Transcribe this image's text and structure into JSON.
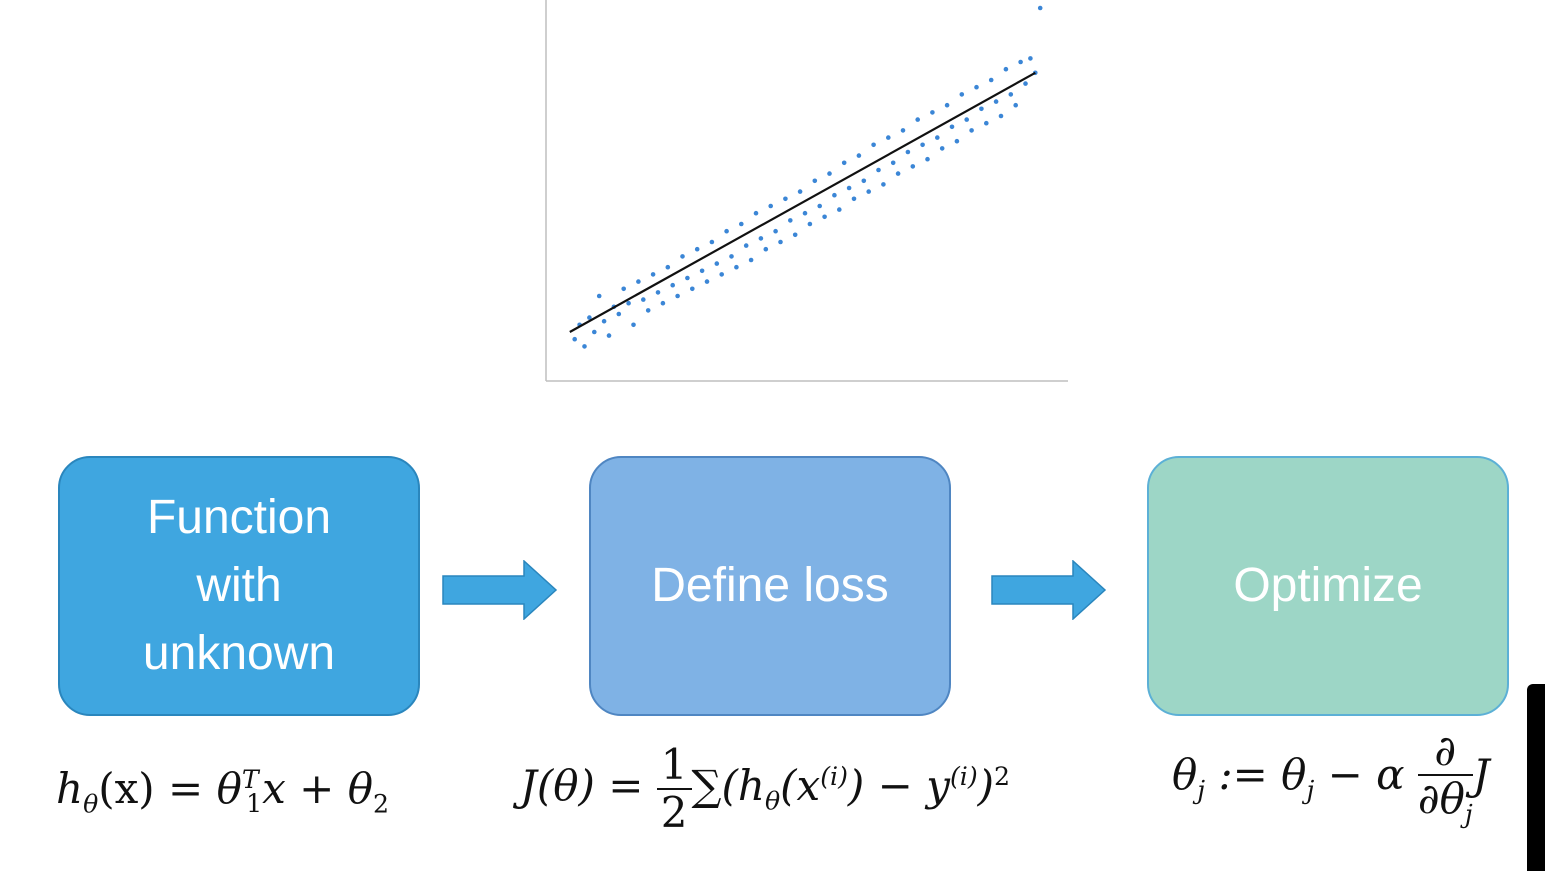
{
  "chart_data": {
    "type": "scatter",
    "title": "",
    "xlabel": "",
    "ylabel": "",
    "xlim": [
      0,
      100
    ],
    "ylim": [
      0,
      100
    ],
    "tick_labels_legible": false,
    "fit_line": {
      "x": [
        2,
        97
      ],
      "y": [
        10,
        82
      ],
      "color": "#111111"
    },
    "point_color": "#3b86d6",
    "points": [
      {
        "x": 3,
        "y": 8
      },
      {
        "x": 4,
        "y": 12
      },
      {
        "x": 5,
        "y": 6
      },
      {
        "x": 6,
        "y": 14
      },
      {
        "x": 7,
        "y": 10
      },
      {
        "x": 8,
        "y": 20
      },
      {
        "x": 9,
        "y": 13
      },
      {
        "x": 10,
        "y": 9
      },
      {
        "x": 11,
        "y": 17
      },
      {
        "x": 12,
        "y": 15
      },
      {
        "x": 13,
        "y": 22
      },
      {
        "x": 14,
        "y": 18
      },
      {
        "x": 15,
        "y": 12
      },
      {
        "x": 16,
        "y": 24
      },
      {
        "x": 17,
        "y": 19
      },
      {
        "x": 18,
        "y": 16
      },
      {
        "x": 19,
        "y": 26
      },
      {
        "x": 20,
        "y": 21
      },
      {
        "x": 21,
        "y": 18
      },
      {
        "x": 22,
        "y": 28
      },
      {
        "x": 23,
        "y": 23
      },
      {
        "x": 24,
        "y": 20
      },
      {
        "x": 25,
        "y": 31
      },
      {
        "x": 26,
        "y": 25
      },
      {
        "x": 27,
        "y": 22
      },
      {
        "x": 28,
        "y": 33
      },
      {
        "x": 29,
        "y": 27
      },
      {
        "x": 30,
        "y": 24
      },
      {
        "x": 31,
        "y": 35
      },
      {
        "x": 32,
        "y": 29
      },
      {
        "x": 33,
        "y": 26
      },
      {
        "x": 34,
        "y": 38
      },
      {
        "x": 35,
        "y": 31
      },
      {
        "x": 36,
        "y": 28
      },
      {
        "x": 37,
        "y": 40
      },
      {
        "x": 38,
        "y": 34
      },
      {
        "x": 39,
        "y": 30
      },
      {
        "x": 40,
        "y": 43
      },
      {
        "x": 41,
        "y": 36
      },
      {
        "x": 42,
        "y": 33
      },
      {
        "x": 43,
        "y": 45
      },
      {
        "x": 44,
        "y": 38
      },
      {
        "x": 45,
        "y": 35
      },
      {
        "x": 46,
        "y": 47
      },
      {
        "x": 47,
        "y": 41
      },
      {
        "x": 48,
        "y": 37
      },
      {
        "x": 49,
        "y": 49
      },
      {
        "x": 50,
        "y": 43
      },
      {
        "x": 51,
        "y": 40
      },
      {
        "x": 52,
        "y": 52
      },
      {
        "x": 53,
        "y": 45
      },
      {
        "x": 54,
        "y": 42
      },
      {
        "x": 55,
        "y": 54
      },
      {
        "x": 56,
        "y": 48
      },
      {
        "x": 57,
        "y": 44
      },
      {
        "x": 58,
        "y": 57
      },
      {
        "x": 59,
        "y": 50
      },
      {
        "x": 60,
        "y": 47
      },
      {
        "x": 61,
        "y": 59
      },
      {
        "x": 62,
        "y": 52
      },
      {
        "x": 63,
        "y": 49
      },
      {
        "x": 64,
        "y": 62
      },
      {
        "x": 65,
        "y": 55
      },
      {
        "x": 66,
        "y": 51
      },
      {
        "x": 67,
        "y": 64
      },
      {
        "x": 68,
        "y": 57
      },
      {
        "x": 69,
        "y": 54
      },
      {
        "x": 70,
        "y": 66
      },
      {
        "x": 71,
        "y": 60
      },
      {
        "x": 72,
        "y": 56
      },
      {
        "x": 73,
        "y": 69
      },
      {
        "x": 74,
        "y": 62
      },
      {
        "x": 75,
        "y": 58
      },
      {
        "x": 76,
        "y": 71
      },
      {
        "x": 77,
        "y": 64
      },
      {
        "x": 78,
        "y": 61
      },
      {
        "x": 79,
        "y": 73
      },
      {
        "x": 80,
        "y": 67
      },
      {
        "x": 81,
        "y": 63
      },
      {
        "x": 82,
        "y": 76
      },
      {
        "x": 83,
        "y": 69
      },
      {
        "x": 84,
        "y": 66
      },
      {
        "x": 85,
        "y": 78
      },
      {
        "x": 86,
        "y": 72
      },
      {
        "x": 87,
        "y": 68
      },
      {
        "x": 88,
        "y": 80
      },
      {
        "x": 89,
        "y": 74
      },
      {
        "x": 90,
        "y": 70
      },
      {
        "x": 91,
        "y": 83
      },
      {
        "x": 92,
        "y": 76
      },
      {
        "x": 93,
        "y": 73
      },
      {
        "x": 94,
        "y": 85
      },
      {
        "x": 95,
        "y": 79
      },
      {
        "x": 96,
        "y": 86
      },
      {
        "x": 97,
        "y": 82
      },
      {
        "x": 98,
        "y": 100
      }
    ]
  },
  "steps": [
    {
      "label": "Function\nwith\nunknown",
      "color": "#3fa6e0"
    },
    {
      "label": "Define loss",
      "color": "#7fb2e5"
    },
    {
      "label": "Optimize",
      "color": "#9dd6c6"
    }
  ],
  "formulas": {
    "hypothesis": {
      "h": "h",
      "theta": "θ",
      "x_paren": "(x) = ",
      "theta1": "θ",
      "T": "T",
      "one": "1",
      "x_plus": "x + ",
      "theta2": "θ",
      "two": "2"
    },
    "loss": {
      "J": "J(θ) = ",
      "num": "1",
      "den": "2",
      "sum": "∑",
      "body1": "(h",
      "theta_sub": "θ",
      "body2": "(x",
      "i1": "(i)",
      "body3": ") − y",
      "i2": "(i)",
      "body4": ")",
      "sq": "2"
    },
    "update": {
      "theta_j": "θ",
      "j1": "j",
      "assign": " := θ",
      "j2": "j",
      "minus_alpha": " − α ",
      "partial_num": "∂",
      "partial_den": "∂θ",
      "j3": "j",
      "J": "J"
    }
  }
}
